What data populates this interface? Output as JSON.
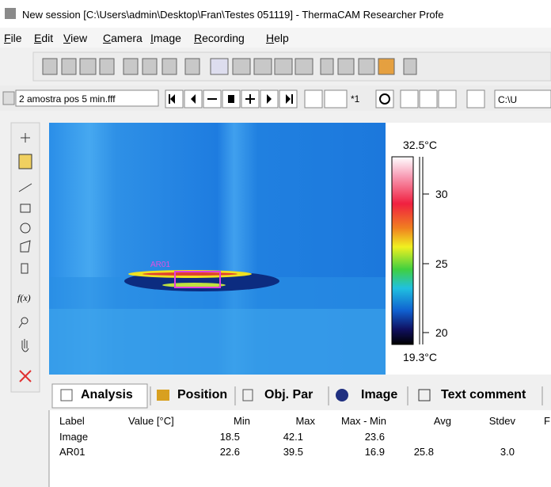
{
  "window": {
    "title": "New session [C:\\Users\\admin\\Desktop\\Fran\\Testes 051119] - ThermaCAM Researcher Profe"
  },
  "menu": [
    "File",
    "Edit",
    "View",
    "Camera",
    "Image",
    "Recording",
    "Help"
  ],
  "toolbar": {
    "file": "2 amostra pos 5 min.fff",
    "zoom": "*1",
    "path": "C:\\U"
  },
  "left_toolbar": {
    "fx": "f(x)"
  },
  "image": {
    "roi_label": "AR01"
  },
  "scale": {
    "max": "32.5°C",
    "min": "19.3°C",
    "ticks": [
      "30",
      "25",
      "20"
    ]
  },
  "tabs": [
    "Analysis",
    "Position",
    "Obj. Par",
    "Image",
    "Text comment"
  ],
  "table": {
    "columns": [
      "Label",
      "Value [°C]",
      "Min",
      "Max",
      "Max - Min",
      "Avg",
      "Stdev",
      "F"
    ],
    "rows": [
      {
        "label": "Image",
        "min": "18.5",
        "max": "42.1",
        "range": "23.6"
      },
      {
        "label": "AR01",
        "min": "22.6",
        "max": "39.5",
        "range": "16.9",
        "avg": "25.8",
        "stdev": "3.0"
      }
    ]
  }
}
